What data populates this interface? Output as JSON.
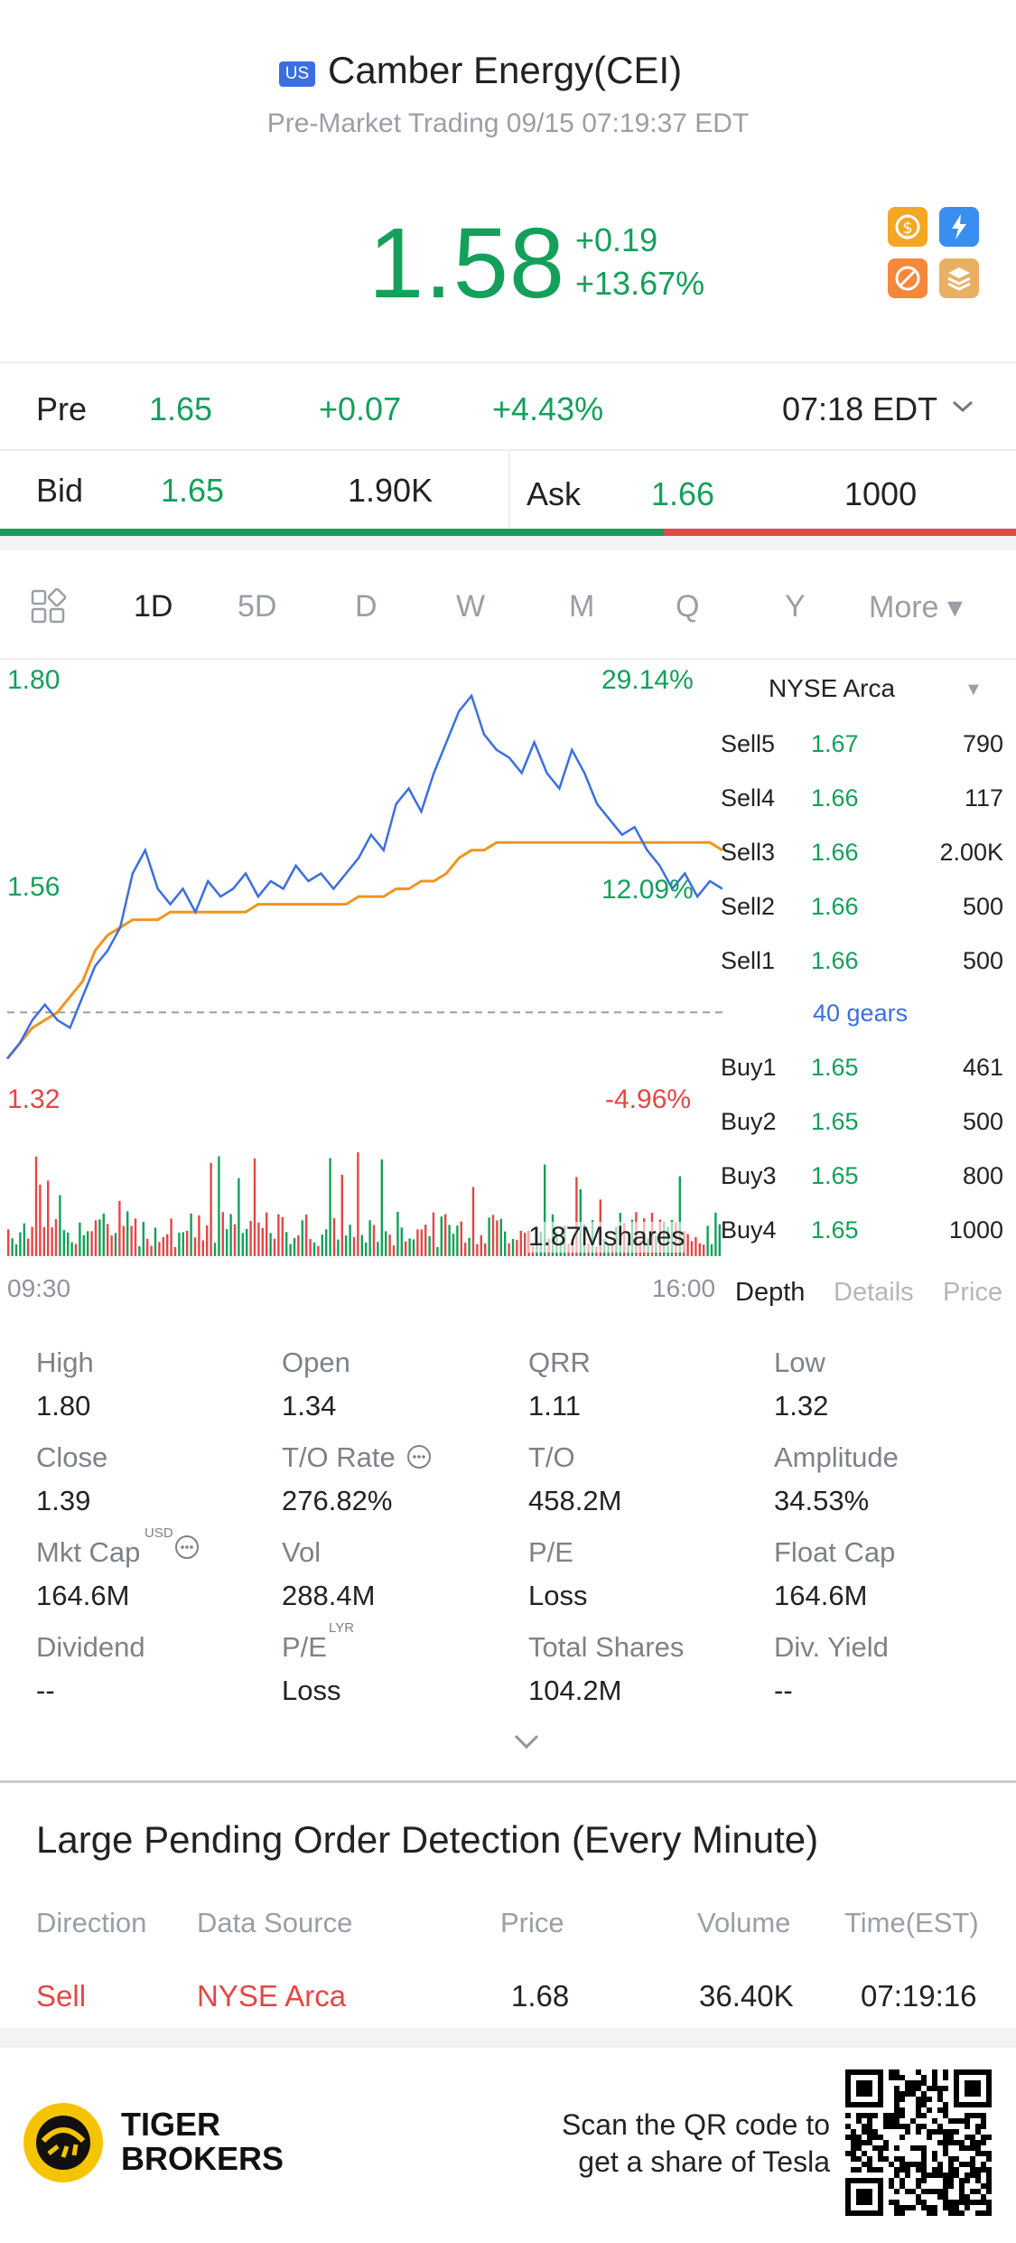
{
  "header": {
    "market_badge": "US",
    "title": "Camber Energy(CEI)",
    "subtitle": "Pre-Market Trading 09/15 07:19:37 EDT",
    "price": "1.58",
    "change_abs": "+0.19",
    "change_pct": "+13.67%",
    "icons": [
      "dollar-icon",
      "lightning-icon",
      "no-short-icon",
      "layers-icon"
    ]
  },
  "premarket": {
    "label": "Pre",
    "price": "1.65",
    "change": "+0.07",
    "change_pct": "+4.43%",
    "time": "07:18 EDT"
  },
  "quote": {
    "bid_label": "Bid",
    "bid_price": "1.65",
    "bid_size": "1.90K",
    "ask_label": "Ask",
    "ask_price": "1.66",
    "ask_size": "1000",
    "bid_share": 0.653
  },
  "tabs": [
    "1D",
    "5D",
    "D",
    "W",
    "M",
    "Q",
    "Y",
    "More ▾"
  ],
  "chart": {
    "price_high": "1.80",
    "price_mid": "1.56",
    "price_low": "1.32",
    "pct_high": "29.14%",
    "pct_mid": "12.09%",
    "pct_low": "-4.96%",
    "volume_label": "1.87Mshares",
    "time_start": "09:30",
    "time_end": "16:00"
  },
  "chart_data": {
    "type": "line",
    "title": "",
    "xlabel": "",
    "ylabel": "",
    "x_range": [
      "09:30",
      "16:00"
    ],
    "ylim": [
      1.32,
      1.8
    ],
    "prev_close": 1.39,
    "series": [
      {
        "values": [
          1.33,
          1.35,
          1.38,
          1.4,
          1.38,
          1.37,
          1.41,
          1.45,
          1.47,
          1.5,
          1.57,
          1.6,
          1.55,
          1.53,
          1.55,
          1.52,
          1.56,
          1.54,
          1.55,
          1.57,
          1.54,
          1.56,
          1.55,
          1.58,
          1.56,
          1.57,
          1.55,
          1.57,
          1.59,
          1.62,
          1.6,
          1.66,
          1.68,
          1.65,
          1.7,
          1.74,
          1.78,
          1.8,
          1.75,
          1.73,
          1.72,
          1.7,
          1.74,
          1.7,
          1.68,
          1.73,
          1.7,
          1.66,
          1.64,
          1.62,
          1.63,
          1.6,
          1.58,
          1.55,
          1.57,
          1.54,
          1.56,
          1.55
        ]
      },
      {
        "values": [
          1.33,
          1.35,
          1.37,
          1.38,
          1.39,
          1.41,
          1.43,
          1.47,
          1.49,
          1.5,
          1.51,
          1.51,
          1.51,
          1.52,
          1.52,
          1.52,
          1.52,
          1.52,
          1.52,
          1.52,
          1.53,
          1.53,
          1.53,
          1.53,
          1.53,
          1.53,
          1.53,
          1.53,
          1.54,
          1.54,
          1.54,
          1.55,
          1.55,
          1.56,
          1.56,
          1.57,
          1.59,
          1.6,
          1.6,
          1.61,
          1.61,
          1.61,
          1.61,
          1.61,
          1.61,
          1.61,
          1.61,
          1.61,
          1.61,
          1.61,
          1.61,
          1.61,
          1.61,
          1.61,
          1.61,
          1.61,
          1.61,
          1.6
        ]
      }
    ],
    "volume_total": "1.87Mshares"
  },
  "orderbook": {
    "exchange": "NYSE Arca",
    "gears": "40 gears",
    "sells": [
      {
        "name": "Sell5",
        "price": "1.67",
        "vol": "790"
      },
      {
        "name": "Sell4",
        "price": "1.66",
        "vol": "117"
      },
      {
        "name": "Sell3",
        "price": "1.66",
        "vol": "2.00K"
      },
      {
        "name": "Sell2",
        "price": "1.66",
        "vol": "500"
      },
      {
        "name": "Sell1",
        "price": "1.66",
        "vol": "500"
      }
    ],
    "buys": [
      {
        "name": "Buy1",
        "price": "1.65",
        "vol": "461"
      },
      {
        "name": "Buy2",
        "price": "1.65",
        "vol": "500"
      },
      {
        "name": "Buy3",
        "price": "1.65",
        "vol": "800"
      },
      {
        "name": "Buy4",
        "price": "1.65",
        "vol": "1000"
      }
    ],
    "tabs": [
      "Depth",
      "Details",
      "Price"
    ]
  },
  "stats": [
    {
      "label": "High",
      "value": "1.80"
    },
    {
      "label": "Open",
      "value": "1.34"
    },
    {
      "label": "QRR",
      "value": "1.11"
    },
    {
      "label": "Low",
      "value": "1.32"
    },
    {
      "label": "Close",
      "value": "1.39"
    },
    {
      "label": "T/O Rate",
      "value": "276.82%"
    },
    {
      "label": "T/O",
      "value": "458.2M"
    },
    {
      "label": "Amplitude",
      "value": "34.53%"
    },
    {
      "label": "Mkt Cap",
      "value": "164.6M",
      "sup": "USD"
    },
    {
      "label": "Vol",
      "value": "288.4M"
    },
    {
      "label": "P/E",
      "value": "Loss"
    },
    {
      "label": "Float Cap",
      "value": "164.6M"
    },
    {
      "label": "Dividend",
      "value": "--"
    },
    {
      "label": "P/E",
      "value": "Loss",
      "sup": "LYR"
    },
    {
      "label": "Total Shares",
      "value": "104.2M"
    },
    {
      "label": "Div. Yield",
      "value": "--"
    }
  ],
  "large_orders": {
    "title": "Large Pending Order Detection (Every Minute)",
    "headers": [
      "Direction",
      "Data Source",
      "Price",
      "Volume",
      "Time(EST)"
    ],
    "row": {
      "direction": "Sell",
      "source": "NYSE Arca",
      "price": "1.68",
      "volume": "36.40K",
      "time": "07:19:16"
    }
  },
  "footer": {
    "brand_line1": "TIGER",
    "brand_line2": "BROKERS",
    "scan_line1": "Scan the QR code to",
    "scan_line2": "get a share of Tesla"
  },
  "colors": {
    "up": "#13a05a",
    "down": "#e54646",
    "line": "#3b6fe0",
    "avg": "#f0951f"
  }
}
